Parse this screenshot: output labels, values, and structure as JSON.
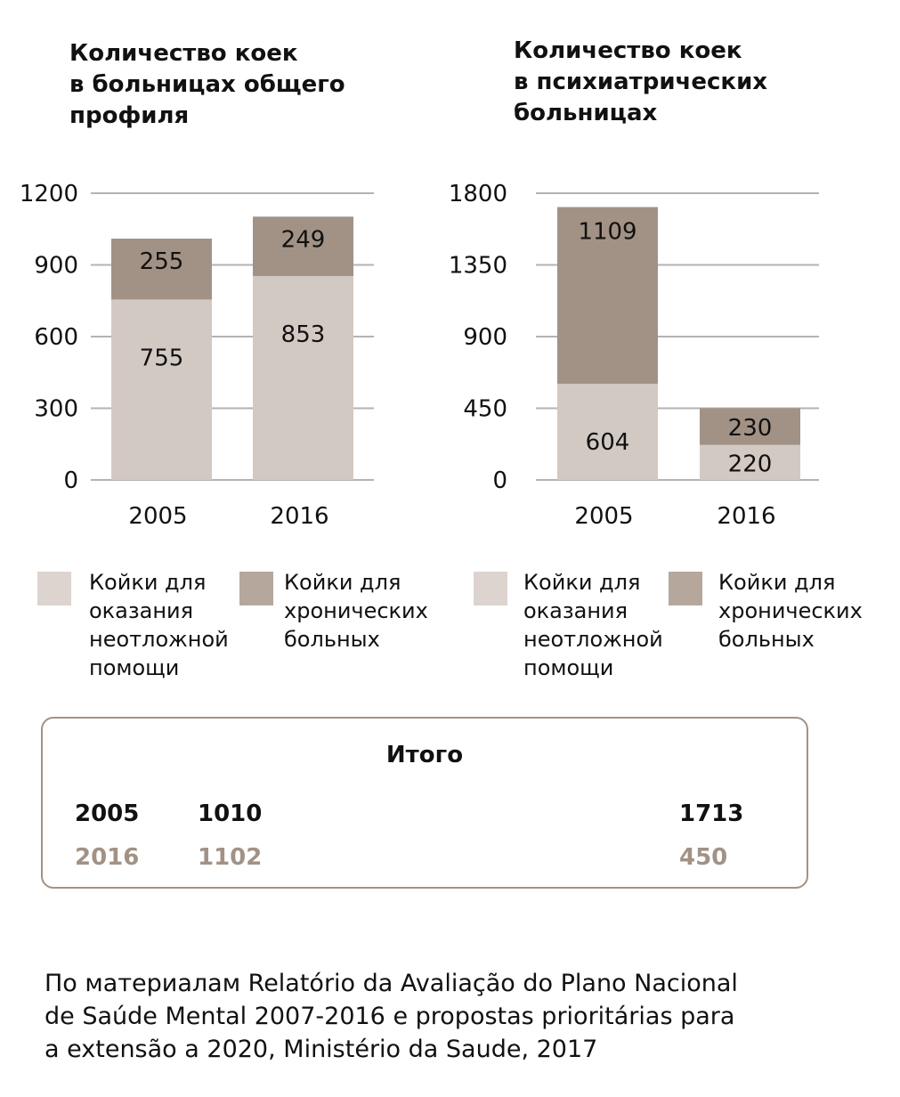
{
  "colors": {
    "acute": "#d3c9c3",
    "chronic": "#a29285",
    "grid": "#b3b3b3",
    "text": "#111111",
    "muted": "#a29285"
  },
  "chart_data": [
    {
      "type": "bar",
      "stacked": true,
      "title": "Количество коек\nв больницах общего\nпрофиля",
      "categories": [
        "2005",
        "2016"
      ],
      "series": [
        {
          "name": "Койки для оказания неотложной помощи",
          "values": [
            755,
            853
          ]
        },
        {
          "name": "Койки для хронических больных",
          "values": [
            255,
            249
          ]
        }
      ],
      "yticks": [
        0,
        300,
        600,
        900,
        1200
      ],
      "ylim": [
        0,
        1200
      ],
      "grid": true,
      "xlabel": "",
      "ylabel": ""
    },
    {
      "type": "bar",
      "stacked": true,
      "title": "Количество коек\nв психиатрических\nбольницах",
      "categories": [
        "2005",
        "2016"
      ],
      "series": [
        {
          "name": "Койки для оказания неотложной помощи",
          "values": [
            604,
            220
          ]
        },
        {
          "name": "Койки для хронических больных",
          "values": [
            1109,
            230
          ]
        }
      ],
      "yticks": [
        0,
        450,
        900,
        1350,
        1800
      ],
      "ylim": [
        0,
        1800
      ],
      "grid": true,
      "xlabel": "",
      "ylabel": ""
    }
  ],
  "legend": {
    "acute_label": "Койки для\nоказания\nнеотложной\nпомощи",
    "chronic_label": "Койки для\nхронических\nбольных"
  },
  "totals": {
    "title": "Итого",
    "rows": [
      {
        "year": "2005",
        "general": "1010",
        "psychiatric": "1713"
      },
      {
        "year": "2016",
        "general": "1102",
        "psychiatric": "450"
      }
    ]
  },
  "source": "По материалам Relatório da Avaliação do Plano Nacional\nde Saúde Mental 2007-2016 e propostas prioritárias para\na extensão a 2020, Ministério da Saude, 2017"
}
